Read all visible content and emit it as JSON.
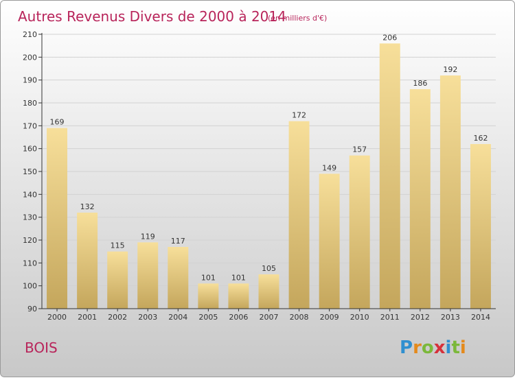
{
  "chart_title": "Autres Revenus Divers de 2000 à 2014",
  "chart_unit": "(en milliers d'€)",
  "commune": "BOIS",
  "logo_text": "Proxiti",
  "colors": {
    "title": "#b8245a",
    "bar_light": "#f6dc95",
    "bar_dark": "#c5a75e",
    "axis": "#333333",
    "grid": "#d0d0d0"
  },
  "chart_data": {
    "type": "bar",
    "title": "Autres Revenus Divers de 2000 à 2014",
    "subtitle": "(en milliers d'€)",
    "categories": [
      "2000",
      "2001",
      "2002",
      "2003",
      "2004",
      "2005",
      "2006",
      "2007",
      "2008",
      "2009",
      "2010",
      "2011",
      "2012",
      "2013",
      "2014"
    ],
    "values": [
      169,
      132,
      115,
      119,
      117,
      101,
      101,
      105,
      172,
      149,
      157,
      206,
      186,
      192,
      162
    ],
    "ylim": [
      90,
      210
    ],
    "yticks": [
      90,
      100,
      110,
      120,
      130,
      140,
      150,
      160,
      170,
      180,
      190,
      200,
      210
    ],
    "grid": true,
    "data_labels": true
  }
}
